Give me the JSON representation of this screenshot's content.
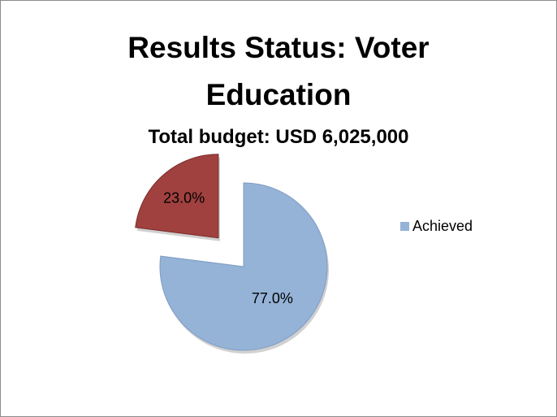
{
  "chart_data": {
    "type": "pie",
    "title": "Results Status: Voter Education",
    "subtitle": "Total budget: USD 6,025,000",
    "categories": [
      "Achieved",
      null
    ],
    "values": [
      77,
      23
    ],
    "value_labels": [
      "77.0%",
      "23.0%"
    ],
    "colors": [
      "#95b3d7",
      "#a0413f"
    ],
    "legend": "right"
  }
}
